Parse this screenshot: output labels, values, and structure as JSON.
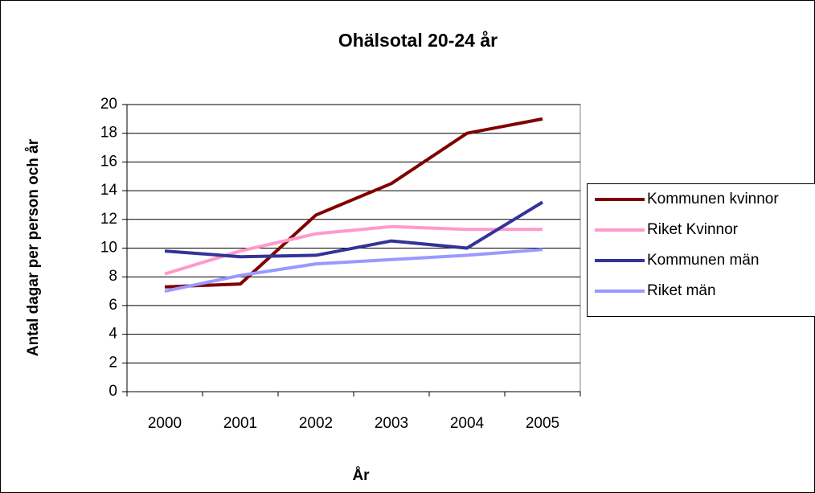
{
  "chart_data": {
    "type": "line",
    "title": "Ohälsotal 20-24 år",
    "x_label": "År",
    "y_label": "Antal dagar per person och år",
    "categories": [
      "2000",
      "2001",
      "2002",
      "2003",
      "2004",
      "2005"
    ],
    "series": [
      {
        "name": "Kommunen kvinnor",
        "color": "#800000",
        "values": [
          7.3,
          7.5,
          12.3,
          14.5,
          18.0,
          19.0
        ]
      },
      {
        "name": "Riket Kvinnor",
        "color": "#ff99cc",
        "values": [
          8.2,
          9.8,
          11.0,
          11.5,
          11.3,
          11.3
        ]
      },
      {
        "name": "Kommunen män",
        "color": "#333399",
        "values": [
          9.8,
          9.4,
          9.5,
          10.5,
          10.0,
          13.2
        ]
      },
      {
        "name": "Riket män",
        "color": "#9999ff",
        "values": [
          7.0,
          8.1,
          8.9,
          9.2,
          9.5,
          9.9
        ]
      }
    ],
    "ylim": [
      0,
      20
    ],
    "yticks": [
      0,
      2,
      4,
      6,
      8,
      10,
      12,
      14,
      16,
      18,
      20
    ],
    "grid": true,
    "legend": "right"
  }
}
